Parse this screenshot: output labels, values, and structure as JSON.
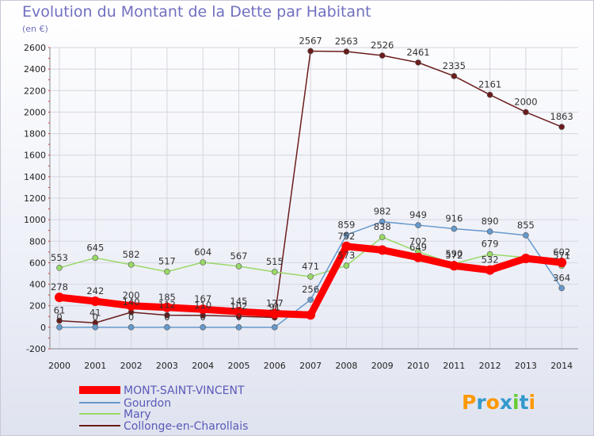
{
  "chart_data": {
    "type": "line",
    "title": "Evolution du Montant de la Dette par Habitant",
    "subtitle": "(en €)",
    "xlabel": "",
    "ylabel": "",
    "ylim": [
      -200,
      2600
    ],
    "y_ticks": [
      -200,
      0,
      200,
      400,
      600,
      800,
      1000,
      1200,
      1400,
      1600,
      1800,
      2000,
      2200,
      2400,
      2600
    ],
    "grid": true,
    "legend_position": "bottom-left",
    "categories": [
      "2000",
      "2001",
      "2002",
      "2003",
      "2004",
      "2005",
      "2006",
      "2007",
      "2008",
      "2009",
      "2010",
      "2011",
      "2012",
      "2013",
      "2014"
    ],
    "series": [
      {
        "name": "MONT-SAINT-VINCENT",
        "color": "#ff0000",
        "values": [
          278,
          242,
          200,
          185,
          167,
          145,
          127,
          115,
          752,
          718,
          649,
          572,
          532,
          640,
          602
        ]
      },
      {
        "name": "Gourdon",
        "color": "#6699cc",
        "values": [
          0,
          0,
          0,
          0,
          0,
          0,
          0,
          256,
          859,
          982,
          949,
          916,
          890,
          855,
          364
        ]
      },
      {
        "name": "Mary",
        "color": "#99d966",
        "values": [
          553,
          645,
          582,
          517,
          604,
          567,
          515,
          471,
          573,
          838,
          702,
          590,
          679,
          648,
          571
        ]
      },
      {
        "name": "Collonge-en-Charollais",
        "color": "#6b1c1c",
        "values": [
          61,
          41,
          140,
          112,
          110,
          102,
          91,
          2567,
          2563,
          2526,
          2461,
          2335,
          2161,
          2000,
          1863
        ]
      }
    ],
    "point_labels": [
      {
        "series": 0,
        "labels": [
          "278",
          "242",
          "200",
          "185",
          "167",
          "145",
          "127",
          "",
          "752",
          "",
          "649",
          "572",
          "532",
          "",
          "602"
        ]
      },
      {
        "series": 1,
        "labels": [
          "0",
          "0",
          "0",
          "0",
          "0",
          "0",
          "",
          "256",
          "859",
          "982",
          "949",
          "916",
          "890",
          "855",
          "364"
        ]
      },
      {
        "series": 2,
        "labels": [
          "553",
          "645",
          "582",
          "517",
          "604",
          "567",
          "515",
          "471",
          "573",
          "838",
          "702",
          "590",
          "679",
          "",
          "571"
        ]
      },
      {
        "series": 3,
        "labels": [
          "61",
          "41",
          "140",
          "112",
          "110",
          "102",
          "91",
          "2567",
          "2563",
          "2526",
          "2461",
          "2335",
          "2161",
          "2000",
          "1863"
        ]
      }
    ]
  },
  "logo_text": "Proxiti"
}
